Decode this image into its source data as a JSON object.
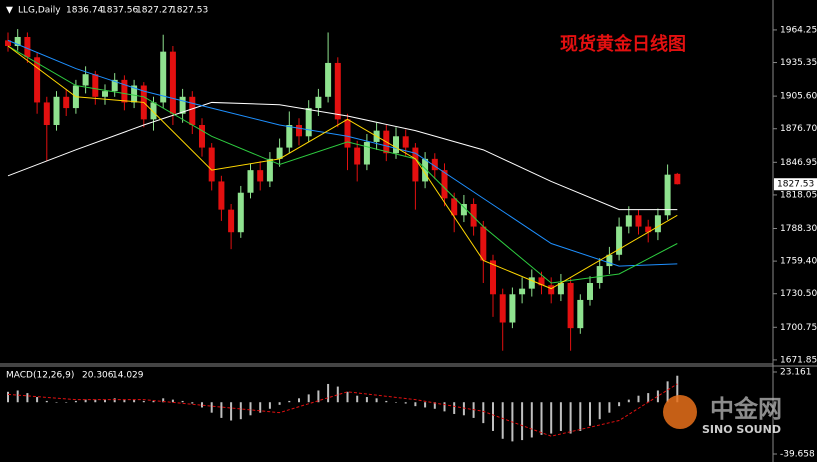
{
  "chart_data": {
    "type": "candlestick",
    "title": "现货黄金日线图",
    "symbol": "LLG,Daily",
    "open": [
      1955,
      1950,
      1958,
      1940,
      1900,
      1880,
      1905,
      1895,
      1915,
      1925,
      1905,
      1910,
      1920,
      1900,
      1915,
      1885,
      1900,
      1945,
      1890,
      1905,
      1880,
      1860,
      1830,
      1805,
      1785,
      1820,
      1840,
      1830,
      1850,
      1860,
      1880,
      1870,
      1895,
      1905,
      1935,
      1885,
      1860,
      1845,
      1865,
      1875,
      1855,
      1870,
      1860,
      1830,
      1850,
      1840,
      1815,
      1800,
      1810,
      1790,
      1760,
      1730,
      1705,
      1730,
      1735,
      1745,
      1738,
      1730,
      1740,
      1700,
      1725,
      1740,
      1755,
      1765,
      1790,
      1800,
      1790,
      1785,
      1800,
      1836.74
    ],
    "high": [
      1962,
      1965,
      1962,
      1944,
      1905,
      1910,
      1912,
      1920,
      1932,
      1928,
      1916,
      1926,
      1924,
      1920,
      1918,
      1905,
      1960,
      1950,
      1912,
      1910,
      1886,
      1864,
      1835,
      1810,
      1826,
      1846,
      1848,
      1856,
      1868,
      1892,
      1886,
      1902,
      1912,
      1962,
      1940,
      1890,
      1866,
      1872,
      1882,
      1880,
      1878,
      1876,
      1864,
      1856,
      1855,
      1846,
      1820,
      1818,
      1815,
      1795,
      1765,
      1735,
      1736,
      1745,
      1752,
      1750,
      1745,
      1748,
      1744,
      1730,
      1746,
      1762,
      1772,
      1798,
      1808,
      1805,
      1796,
      1806,
      1845,
      1837.56
    ],
    "low": [
      1945,
      1946,
      1935,
      1890,
      1848,
      1875,
      1888,
      1890,
      1908,
      1898,
      1898,
      1905,
      1893,
      1895,
      1878,
      1875,
      1895,
      1880,
      1882,
      1872,
      1852,
      1822,
      1795,
      1770,
      1780,
      1815,
      1822,
      1825,
      1843,
      1855,
      1862,
      1865,
      1888,
      1900,
      1878,
      1840,
      1830,
      1840,
      1858,
      1848,
      1850,
      1852,
      1805,
      1824,
      1832,
      1808,
      1785,
      1794,
      1782,
      1740,
      1710,
      1680,
      1700,
      1722,
      1728,
      1730,
      1722,
      1724,
      1680,
      1695,
      1720,
      1735,
      1748,
      1760,
      1784,
      1783,
      1776,
      1778,
      1796,
      1827.27
    ],
    "close": [
      1950,
      1958,
      1940,
      1900,
      1880,
      1905,
      1895,
      1915,
      1925,
      1905,
      1910,
      1920,
      1900,
      1915,
      1885,
      1900,
      1945,
      1890,
      1905,
      1880,
      1860,
      1830,
      1805,
      1785,
      1820,
      1840,
      1830,
      1850,
      1860,
      1880,
      1870,
      1895,
      1905,
      1935,
      1885,
      1860,
      1845,
      1865,
      1875,
      1855,
      1870,
      1860,
      1830,
      1850,
      1840,
      1815,
      1800,
      1810,
      1790,
      1760,
      1730,
      1705,
      1730,
      1735,
      1745,
      1738,
      1730,
      1740,
      1700,
      1725,
      1740,
      1755,
      1765,
      1790,
      1800,
      1790,
      1785,
      1800,
      1836,
      1827.53
    ],
    "up_color": "#8fe28f",
    "down_color": "#e31010",
    "ylim": [
      1670,
      1989
    ],
    "yticks": [
      1964.25,
      1935.35,
      {
        "value": 1905.6,
        "label": "1905.60"
      },
      {
        "value": 1876.7,
        "label": "1876.70"
      },
      1846.95,
      1818.05,
      {
        "value": 1788.3,
        "label": "1788.30"
      },
      {
        "value": 1759.4,
        "label": "1759.40"
      },
      {
        "value": 1730.5,
        "label": "1730.50"
      },
      1700.75,
      1671.85
    ],
    "ma_lines": [
      {
        "color": "#ffffff",
        "x": [
          0,
          7,
          14,
          21,
          28,
          35,
          42,
          49,
          56,
          63,
          69
        ],
        "values": [
          1835,
          1858,
          1880,
          1900,
          1898,
          1888,
          1875,
          1858,
          1830,
          1805,
          1805
        ]
      },
      {
        "color": "#1e90ff",
        "x": [
          0,
          7,
          14,
          21,
          28,
          35,
          42,
          49,
          56,
          63,
          69
        ],
        "values": [
          1955,
          1930,
          1910,
          1895,
          1880,
          1870,
          1855,
          1815,
          1775,
          1755,
          1757
        ]
      },
      {
        "color": "#2ecc40",
        "x": [
          0,
          7,
          14,
          21,
          28,
          35,
          42,
          49,
          56,
          63,
          69
        ],
        "values": [
          1950,
          1915,
          1905,
          1870,
          1845,
          1865,
          1850,
          1790,
          1740,
          1748,
          1775
        ]
      },
      {
        "color": "#ffd700",
        "x": [
          0,
          7,
          14,
          21,
          28,
          35,
          42,
          49,
          56,
          63,
          69
        ],
        "values": [
          1950,
          1905,
          1900,
          1840,
          1850,
          1885,
          1850,
          1760,
          1735,
          1770,
          1800
        ]
      }
    ],
    "macd": {
      "label": "MACD(12,26,9)",
      "values": [
        8,
        9,
        7,
        4,
        1,
        0,
        0,
        1,
        2,
        2,
        2,
        3,
        2,
        2,
        1,
        1,
        3,
        2,
        1,
        -1,
        -4,
        -8,
        -12,
        -14,
        -13,
        -10,
        -8,
        -5,
        -2,
        1,
        3,
        6,
        9,
        14,
        12,
        8,
        5,
        4,
        3,
        1,
        0,
        -1,
        -3,
        -4,
        -5,
        -7,
        -9,
        -10,
        -12,
        -16,
        -22,
        -28,
        -30,
        -29,
        -27,
        -25,
        -24,
        -22,
        -24,
        -22,
        -18,
        -13,
        -8,
        -3,
        2,
        5,
        7,
        9,
        16,
        20.306
      ],
      "color": "#c0c0c0",
      "signal": {
        "color": "#e31010",
        "x": [
          0,
          7,
          14,
          21,
          28,
          35,
          42,
          49,
          56,
          63,
          69
        ],
        "values": [
          6,
          2,
          2,
          -3,
          -8,
          8,
          2,
          -7,
          -26,
          -14,
          14.029
        ]
      },
      "ylim": [
        -39.658,
        23.161
      ],
      "yticks": [
        23.161,
        -39.658
      ]
    },
    "watermark": [
      "中金网",
      "SINO SOUND"
    ]
  }
}
